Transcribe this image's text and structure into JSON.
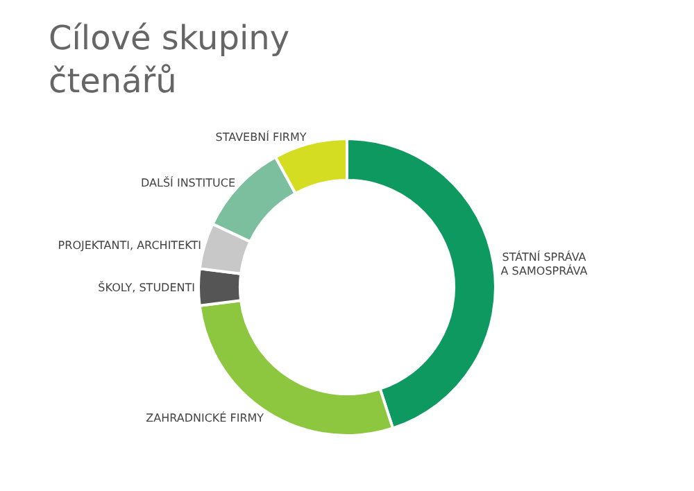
{
  "chart_data": {
    "type": "donut",
    "title": "Cílové skupiny\nčtenářů",
    "categories": [
      "STÁTNÍ SPRÁVA\nA SAMOSPRÁVA",
      "ZAHRADNICKÉ FIRMY",
      "ŠKOLY, STUDENTI",
      "PROJEKTANTI, ARCHITEKTI",
      "DALŠÍ INSTITUCE",
      "STAVEBNÍ FIRMY"
    ],
    "values": [
      45,
      28,
      4,
      5,
      10,
      8
    ],
    "colors": [
      "#0e9960",
      "#8dc63f",
      "#555555",
      "#c8c8c8",
      "#7bbf9e",
      "#d4dd22"
    ],
    "legend": false
  }
}
